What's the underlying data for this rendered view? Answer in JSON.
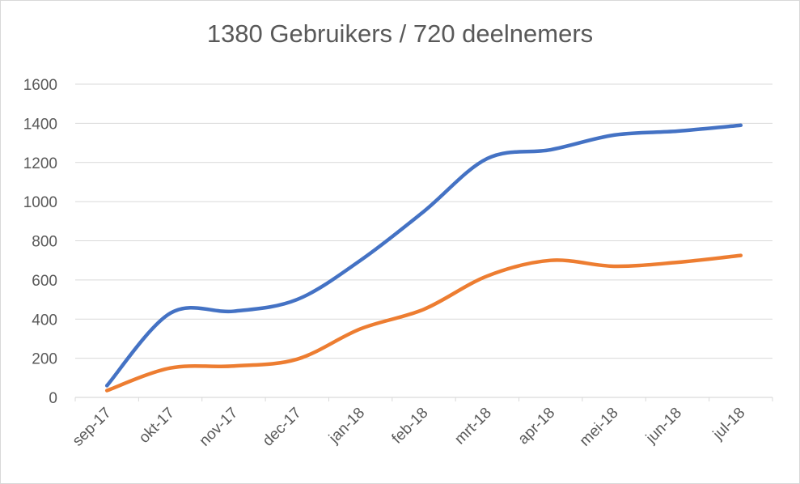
{
  "chart_data": {
    "type": "line",
    "title": "1380 Gebruikers / 720 deelnemers",
    "xlabel": "",
    "ylabel": "",
    "categories": [
      "sep-17",
      "okt-17",
      "nov-17",
      "dec-17",
      "jan-18",
      "feb-18",
      "mrt-18",
      "apr-18",
      "mei-18",
      "jun-18",
      "jul-18"
    ],
    "ylim": [
      0,
      1600
    ],
    "yticks": [
      "0",
      "200",
      "400",
      "600",
      "800",
      "1000",
      "1200",
      "1400",
      "1600"
    ],
    "grid": true,
    "legend": "none",
    "series": [
      {
        "values": [
          60,
          430,
          440,
          500,
          700,
          950,
          1220,
          1265,
          1340,
          1360,
          1390
        ],
        "color": "#4472c4"
      },
      {
        "values": [
          35,
          150,
          160,
          195,
          350,
          450,
          620,
          700,
          670,
          690,
          725
        ],
        "color": "#ed7d31"
      }
    ]
  }
}
